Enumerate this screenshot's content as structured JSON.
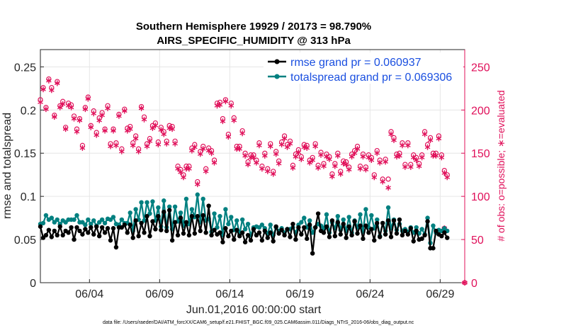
{
  "chart_data": {
    "type": "line",
    "title_line1": "Southern Hemisphere 19929 / 20173 = 98.790%",
    "title_line2": "AIRS_SPECIFIC_HUMIDITY @ 313 hPa",
    "xlabel": "Jun.01,2016 00:00:00 start",
    "ylabel_left": "rmse and totalspread",
    "ylabel_right": "# of obs: o=possible; ∗=evaluated",
    "footnote": "data file: /Users/raeder/DAI/ATM_forcXX/CAM6_setup/f.e21.FHIST_BGC.f09_025.CAM6assim.011/Diags_NTrS_2016-06/obs_diag_output.nc",
    "xlim": [
      0.5,
      30.75
    ],
    "ylim_left": [
      0,
      0.27
    ],
    "ylim_right": [
      0,
      270
    ],
    "x_ticks": [
      4,
      9,
      14,
      19,
      24,
      29
    ],
    "x_tick_labels": [
      "06/04",
      "06/09",
      "06/14",
      "06/19",
      "06/24",
      "06/29"
    ],
    "y_ticks_left": [
      0,
      0.05,
      0.1,
      0.15,
      0.2,
      0.25
    ],
    "y_tick_labels_left": [
      "0",
      "0.05",
      "0.1",
      "0.15",
      "0.2",
      "0.25"
    ],
    "y_ticks_right": [
      0,
      50,
      100,
      150,
      200,
      250
    ],
    "y_tick_labels_right": [
      "0",
      "50",
      "100",
      "150",
      "200",
      "250"
    ],
    "grid": true,
    "legend_position": "top-right",
    "colors": {
      "rmse": "#000000",
      "spread": "#008080",
      "obs": "#e0105a"
    },
    "series": [
      {
        "name": "rmse grand pr = 0.060937",
        "values": [
          0.065,
          0.052,
          0.055,
          0.061,
          0.053,
          0.06,
          0.055,
          0.065,
          0.055,
          0.06,
          0.058,
          0.064,
          0.05,
          0.064,
          0.06,
          0.056,
          0.062,
          0.058,
          0.064,
          0.056,
          0.065,
          0.054,
          0.064,
          0.058,
          0.063,
          0.049,
          0.063,
          0.041,
          0.064,
          0.064,
          0.067,
          0.058,
          0.067,
          0.052,
          0.072,
          0.054,
          0.069,
          0.058,
          0.077,
          0.054,
          0.071,
          0.062,
          0.077,
          0.061,
          0.082,
          0.06,
          0.084,
          0.049,
          0.07,
          0.055,
          0.075,
          0.057,
          0.07,
          0.055,
          0.077,
          0.057,
          0.077,
          0.06,
          0.078,
          0.058,
          0.089,
          0.055,
          0.061,
          0.056,
          0.058,
          0.047,
          0.063,
          0.054,
          0.06,
          0.05,
          0.061,
          0.054,
          0.058,
          0.047,
          0.055,
          0.049,
          0.062,
          0.055,
          0.058,
          0.049,
          0.06,
          0.052,
          0.058,
          0.048,
          0.065,
          0.057,
          0.061,
          0.055,
          0.062,
          0.053,
          0.068,
          0.05,
          0.064,
          0.056,
          0.064,
          0.051,
          0.067,
          0.034,
          0.064,
          0.08,
          0.06,
          0.058,
          0.065,
          0.053,
          0.072,
          0.054,
          0.07,
          0.056,
          0.068,
          0.052,
          0.065,
          0.055,
          0.071,
          0.057,
          0.066,
          0.051,
          0.066,
          0.058,
          0.062,
          0.049,
          0.069,
          0.053,
          0.069,
          0.056,
          0.072,
          0.053,
          0.072,
          0.057,
          0.073,
          0.055,
          0.06,
          0.056,
          0.063,
          0.048,
          0.06,
          0.05,
          0.051,
          0.055,
          0.071,
          0.04,
          0.04,
          0.06,
          0.056,
          0.054,
          0.058,
          0.052
        ],
        "x_start": 0.5,
        "x_step": 0.2
      },
      {
        "name": "totalspread grand pr = 0.069306",
        "values": [
          0.068,
          0.069,
          0.078,
          0.073,
          0.075,
          0.07,
          0.073,
          0.068,
          0.072,
          0.07,
          0.073,
          0.073,
          0.073,
          0.078,
          0.07,
          0.07,
          0.067,
          0.073,
          0.068,
          0.072,
          0.066,
          0.07,
          0.073,
          0.069,
          0.074,
          0.073,
          0.076,
          0.068,
          0.067,
          0.073,
          0.069,
          0.069,
          0.081,
          0.06,
          0.085,
          0.073,
          0.093,
          0.072,
          0.093,
          0.08,
          0.094,
          0.072,
          0.087,
          0.065,
          0.095,
          0.064,
          0.088,
          0.062,
          0.088,
          0.071,
          0.081,
          0.066,
          0.097,
          0.068,
          0.085,
          0.076,
          0.102,
          0.07,
          0.097,
          0.072,
          0.074,
          0.059,
          0.08,
          0.064,
          0.077,
          0.055,
          0.085,
          0.068,
          0.076,
          0.061,
          0.072,
          0.056,
          0.073,
          0.062,
          0.068,
          0.055,
          0.064,
          0.065,
          0.064,
          0.067,
          0.063,
          0.057,
          0.067,
          0.055,
          0.064,
          0.06,
          0.063,
          0.058,
          0.062,
          0.062,
          0.064,
          0.058,
          0.067,
          0.07,
          0.075,
          0.064,
          0.072,
          0.058,
          0.064,
          0.068,
          0.066,
          0.063,
          0.079,
          0.058,
          0.07,
          0.063,
          0.077,
          0.061,
          0.073,
          0.06,
          0.076,
          0.058,
          0.072,
          0.064,
          0.079,
          0.059,
          0.085,
          0.064,
          0.078,
          0.063,
          0.073,
          0.054,
          0.069,
          0.06,
          0.087,
          0.063,
          0.073,
          0.061,
          0.068,
          0.06,
          0.062,
          0.059,
          0.064,
          0.058,
          0.064,
          0.057,
          0.062,
          0.056,
          0.075,
          0.046,
          0.066,
          0.058,
          0.061,
          0.06,
          0.063,
          0.06
        ],
        "x_start": 0.5,
        "x_step": 0.2
      }
    ],
    "obs_possible": {
      "name": "o=possible",
      "values": [
        212,
        226,
        203,
        236,
        226,
        194,
        233,
        205,
        210,
        180,
        208,
        206,
        193,
        178,
        190,
        159,
        203,
        215,
        182,
        199,
        174,
        191,
        197,
        178,
        205,
        161,
        178,
        162,
        195,
        155,
        201,
        179,
        181,
        162,
        170,
        155,
        204,
        192,
        161,
        167,
        182,
        185,
        163,
        180,
        175,
        164,
        182,
        181,
        164,
        135,
        131,
        125,
        135,
        135,
        156,
        160,
        117,
        152,
        158,
        132,
        156,
        153,
        142,
        208,
        209,
        190,
        212,
        172,
        208,
        191,
        158,
        158,
        176,
        150,
        140,
        148,
        148,
        142,
        162,
        135,
        150,
        132,
        161,
        129,
        152,
        141,
        163,
        170,
        160,
        164,
        136,
        149,
        154,
        146,
        160,
        159,
        142,
        145,
        161,
        136,
        151,
        138,
        149,
        146,
        126,
        138,
        150,
        129,
        141,
        140,
        134,
        149,
        153,
        158,
        135,
        149,
        134,
        148,
        145,
        125,
        153,
        142,
        120,
        143,
        120,
        175,
        168,
        149,
        150,
        162,
        137,
        162,
        137,
        148,
        145,
        138,
        148,
        175,
        160,
        168,
        150,
        150,
        170,
        148,
        130,
        125
      ],
      "x_start": 0.5,
      "x_step": 0.2
    },
    "obs_evaluated": {
      "name": "∗=evaluated",
      "values": [
        209,
        224,
        201,
        234,
        223,
        192,
        231,
        203,
        207,
        178,
        205,
        203,
        190,
        175,
        188,
        156,
        201,
        213,
        180,
        196,
        171,
        188,
        194,
        176,
        202,
        158,
        176,
        159,
        193,
        152,
        199,
        176,
        178,
        159,
        167,
        152,
        202,
        189,
        158,
        164,
        179,
        182,
        160,
        177,
        172,
        161,
        179,
        178,
        161,
        132,
        128,
        122,
        132,
        132,
        153,
        157,
        114,
        149,
        155,
        129,
        153,
        150,
        139,
        205,
        206,
        187,
        210,
        169,
        205,
        188,
        155,
        155,
        173,
        147,
        137,
        145,
        145,
        139,
        159,
        132,
        147,
        129,
        158,
        126,
        149,
        138,
        160,
        167,
        157,
        161,
        133,
        146,
        151,
        143,
        157,
        156,
        139,
        142,
        158,
        133,
        148,
        135,
        146,
        143,
        123,
        135,
        147,
        126,
        138,
        137,
        131,
        146,
        150,
        155,
        132,
        146,
        131,
        145,
        142,
        122,
        150,
        139,
        117,
        140,
        110,
        172,
        165,
        146,
        147,
        159,
        134,
        159,
        134,
        145,
        142,
        135,
        145,
        172,
        157,
        165,
        147,
        147,
        167,
        145,
        127,
        122
      ],
      "x_start": 0.5,
      "x_step": 0.2
    },
    "extra_points": [
      {
        "label": "o",
        "x": 29.3,
        "y_right": 63
      },
      {
        "label": "o",
        "x": 30.75,
        "y_right": 0
      }
    ]
  }
}
